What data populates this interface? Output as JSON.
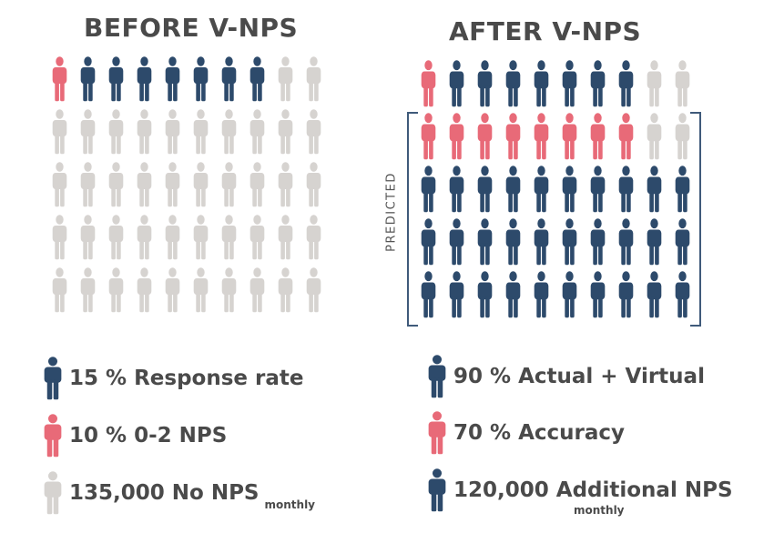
{
  "before": {
    "title": "BEFORE  V-NPS",
    "rows": [
      [
        "pink",
        "navy",
        "navy",
        "navy",
        "navy",
        "navy",
        "navy",
        "navy",
        "gray",
        "gray"
      ],
      [
        "gray",
        "gray",
        "gray",
        "gray",
        "gray",
        "gray",
        "gray",
        "gray",
        "gray",
        "gray"
      ],
      [
        "gray",
        "gray",
        "gray",
        "gray",
        "gray",
        "gray",
        "gray",
        "gray",
        "gray",
        "gray"
      ],
      [
        "gray",
        "gray",
        "gray",
        "gray",
        "gray",
        "gray",
        "gray",
        "gray",
        "gray",
        "gray"
      ],
      [
        "gray",
        "gray",
        "gray",
        "gray",
        "gray",
        "gray",
        "gray",
        "gray",
        "gray",
        "gray"
      ]
    ]
  },
  "after": {
    "title": "AFTER    V-NPS",
    "predicted_label": "PREDICTED",
    "rows": [
      [
        "pink",
        "navy",
        "navy",
        "navy",
        "navy",
        "navy",
        "navy",
        "navy",
        "gray",
        "gray"
      ],
      [
        "pink",
        "pink",
        "pink",
        "pink",
        "pink",
        "pink",
        "pink",
        "pink",
        "gray",
        "gray"
      ],
      [
        "navy",
        "navy",
        "navy",
        "navy",
        "navy",
        "navy",
        "navy",
        "navy",
        "navy",
        "navy"
      ],
      [
        "navy",
        "navy",
        "navy",
        "navy",
        "navy",
        "navy",
        "navy",
        "navy",
        "navy",
        "navy"
      ],
      [
        "navy",
        "navy",
        "navy",
        "navy",
        "navy",
        "navy",
        "navy",
        "navy",
        "navy",
        "navy"
      ]
    ]
  },
  "legend_before": [
    {
      "icon": "navy",
      "text": "15 % Response rate",
      "small": ""
    },
    {
      "icon": "pink",
      "text": "10 %  0-2 NPS",
      "small": ""
    },
    {
      "icon": "gray",
      "text": "135,000 No NPS",
      "small": "monthly"
    }
  ],
  "legend_after": [
    {
      "icon": "navy",
      "text": "90 % Actual + Virtual",
      "small": ""
    },
    {
      "icon": "pink",
      "text": "70 %  Accuracy",
      "small": ""
    },
    {
      "icon": "navy",
      "text": "120,000 Additional NPS",
      "small": "monthly"
    }
  ],
  "colors": {
    "navy": "#2d4a6b",
    "pink": "#e86a78",
    "gray": "#d6d3d0",
    "text": "#4a4a4a"
  }
}
